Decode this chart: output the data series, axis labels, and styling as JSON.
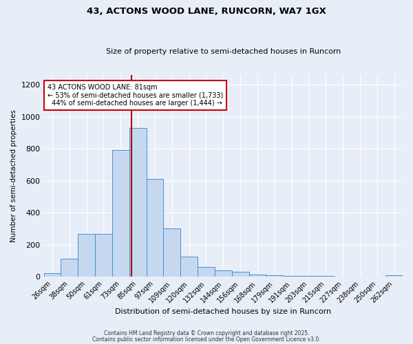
{
  "title1": "43, ACTONS WOOD LANE, RUNCORN, WA7 1GX",
  "title2": "Size of property relative to semi-detached houses in Runcorn",
  "xlabel": "Distribution of semi-detached houses by size in Runcorn",
  "ylabel": "Number of semi-detached properties",
  "categories": [
    "26sqm",
    "38sqm",
    "50sqm",
    "61sqm",
    "73sqm",
    "85sqm",
    "97sqm",
    "109sqm",
    "120sqm",
    "132sqm",
    "144sqm",
    "156sqm",
    "168sqm",
    "179sqm",
    "191sqm",
    "203sqm",
    "215sqm",
    "227sqm",
    "238sqm",
    "250sqm",
    "262sqm"
  ],
  "values": [
    20,
    110,
    265,
    265,
    790,
    930,
    610,
    300,
    125,
    60,
    38,
    30,
    15,
    8,
    5,
    4,
    3,
    2,
    1,
    1,
    8
  ],
  "bar_color": "#c5d8f0",
  "bar_edge_color": "#4a90c8",
  "property_label": "43 ACTONS WOOD LANE: 81sqm",
  "pct_smaller": 53,
  "n_smaller": 1733,
  "pct_larger": 44,
  "n_larger": 1444,
  "vline_x_index": 4.62,
  "vline_color": "#aa0000",
  "ylim": [
    0,
    1260
  ],
  "yticks": [
    0,
    200,
    400,
    600,
    800,
    1000,
    1200
  ],
  "annotation_box_color": "#ffffff",
  "annotation_box_edge": "#cc0000",
  "footer1": "Contains HM Land Registry data © Crown copyright and database right 2025.",
  "footer2": "Contains public sector information licensed under the Open Government Licence v3.0.",
  "background_color": "#e8eef8",
  "grid_color": "#ffffff"
}
